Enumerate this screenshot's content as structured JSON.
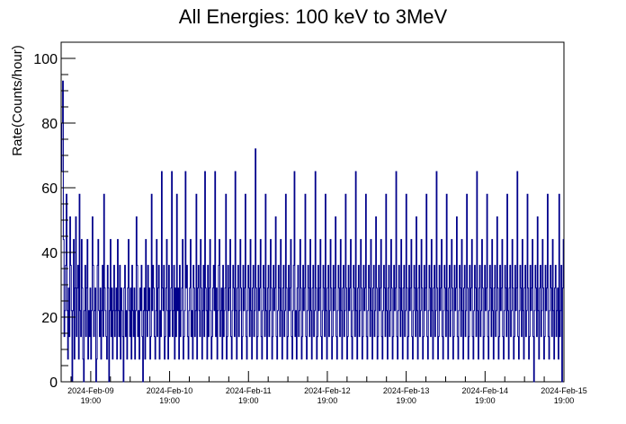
{
  "chart_data": {
    "type": "line",
    "title": "All Energies:  100 keV to 3MeV",
    "xlabel": "",
    "ylabel": "Rate(Counts/hour)",
    "ylim": [
      0,
      105
    ],
    "yticks": [
      0,
      20,
      40,
      60,
      80,
      100
    ],
    "xlim": [
      "2024-Feb-09 10:00",
      "2024-Feb-15 19:00"
    ],
    "xticks": [
      {
        "date": "2024-Feb-09",
        "time": "19:00"
      },
      {
        "date": "2024-Feb-10",
        "time": "19:00"
      },
      {
        "date": "2024-Feb-11",
        "time": "19:00"
      },
      {
        "date": "2024-Feb-12",
        "time": "19:00"
      },
      {
        "date": "2024-Feb-13",
        "time": "19:00"
      },
      {
        "date": "2024-Feb-14",
        "time": "19:00"
      },
      {
        "date": "2024-Feb-15",
        "time": "19:00"
      }
    ],
    "grid": false,
    "line_color": "#00008b",
    "series": [
      {
        "values": [
          65,
          80,
          93,
          44,
          14,
          22,
          36,
          58,
          22,
          7,
          29,
          14,
          51,
          36,
          22,
          0,
          22,
          44,
          7,
          29,
          51,
          14,
          29,
          36,
          7,
          58,
          22,
          14,
          44,
          29,
          7,
          0,
          22,
          36,
          14,
          29,
          44,
          7,
          22,
          14,
          29,
          7,
          22,
          51,
          36,
          14,
          22,
          29,
          0,
          7,
          36,
          44,
          22,
          14,
          29,
          7,
          22,
          36,
          14,
          58,
          29,
          22,
          14,
          7,
          36,
          29,
          0,
          22,
          44,
          14,
          29,
          7,
          22,
          36,
          14,
          22,
          29,
          7,
          44,
          22,
          14,
          36,
          7,
          29,
          22,
          14,
          0,
          29,
          36,
          14,
          22,
          7,
          29,
          44,
          22,
          14,
          29,
          7,
          36,
          22,
          14,
          29,
          7,
          22,
          51,
          36,
          14,
          22,
          7,
          29,
          22,
          36,
          14,
          0,
          22,
          29,
          7,
          44,
          22,
          14,
          36,
          22,
          29,
          7,
          14,
          58,
          22,
          36,
          29,
          14,
          7,
          22,
          44,
          14,
          29,
          36,
          7,
          22,
          14,
          65,
          29,
          22,
          36,
          7,
          14,
          29,
          44,
          22,
          7,
          36,
          14,
          22,
          29,
          65,
          14,
          22,
          36,
          7,
          29,
          14,
          58,
          22,
          29,
          7,
          36,
          14,
          22,
          29,
          44,
          7,
          14,
          22,
          65,
          29,
          36,
          14,
          7,
          22,
          29,
          44,
          14,
          22,
          7,
          36,
          29,
          14,
          22,
          58,
          7,
          29,
          36,
          22,
          14,
          44,
          29,
          7,
          22,
          36,
          14,
          65,
          29,
          22,
          7,
          36,
          14,
          29,
          44,
          22,
          7,
          14,
          29,
          36,
          22,
          65,
          14,
          29,
          7,
          22,
          36,
          44,
          14,
          22,
          29,
          7,
          36,
          14,
          22,
          29,
          58,
          7,
          14,
          36,
          22,
          29,
          44,
          14,
          7,
          22,
          36,
          29,
          14,
          65,
          22,
          7,
          29,
          36,
          14,
          22,
          44,
          29,
          7,
          14,
          36,
          22,
          29,
          58,
          14,
          7,
          22,
          36,
          29,
          14,
          44,
          22,
          7,
          29,
          36,
          14,
          22,
          72,
          29,
          7,
          14,
          36,
          22,
          29,
          44,
          14,
          7,
          22,
          36,
          29,
          14,
          58,
          22,
          7,
          29,
          36,
          14,
          22,
          44,
          29,
          7,
          14,
          36,
          22,
          29,
          51,
          14,
          7,
          22,
          36,
          29,
          14,
          44,
          22,
          7,
          29,
          36,
          14,
          22,
          58,
          29,
          7,
          14,
          36,
          22,
          29,
          44,
          14,
          7,
          22,
          36,
          65,
          14,
          22,
          7,
          29,
          36,
          14,
          22,
          44,
          29,
          7,
          14,
          36,
          22,
          29,
          58,
          14,
          7,
          22,
          36,
          29,
          14,
          44,
          22,
          7,
          29,
          36,
          14,
          22,
          65,
          29,
          7,
          14,
          36,
          22,
          29,
          44,
          14,
          7,
          22,
          36,
          29,
          14,
          58,
          22,
          7,
          29,
          36,
          14,
          22,
          44,
          29,
          7,
          14,
          36,
          22,
          29,
          51,
          14,
          7,
          22,
          36,
          29,
          14,
          44,
          22,
          7,
          29,
          36,
          14,
          22,
          58,
          29,
          7,
          14,
          36,
          22,
          29,
          44,
          14,
          7,
          22,
          36,
          29,
          14,
          65,
          22,
          7,
          29,
          36,
          14,
          22,
          44,
          29,
          7,
          14,
          36,
          22,
          29,
          58,
          14,
          7,
          22,
          36,
          29,
          14,
          44,
          22,
          7,
          29,
          36,
          14,
          22,
          51,
          29,
          7,
          14,
          36,
          22,
          29,
          44,
          14,
          7,
          22,
          36,
          29,
          14,
          58,
          22,
          7,
          29,
          36,
          14,
          22,
          44,
          29,
          7,
          14,
          36,
          22,
          29,
          65,
          14,
          7,
          22,
          36,
          29,
          14,
          44,
          22,
          7,
          29,
          36,
          14,
          22,
          58,
          29,
          7,
          14,
          36,
          22,
          29,
          44,
          14,
          7,
          22,
          36,
          29,
          14,
          51,
          22,
          7,
          29,
          36,
          14,
          22,
          44,
          29,
          7,
          14,
          36,
          22,
          29,
          58,
          14,
          7,
          22,
          36,
          29,
          14,
          44,
          22,
          7,
          29,
          36,
          14,
          22,
          65,
          29,
          7,
          14,
          36,
          22,
          29,
          44,
          14,
          7,
          22,
          36,
          29,
          14,
          58,
          22,
          7,
          29,
          36,
          14,
          22,
          44,
          29,
          7,
          14,
          36,
          22,
          29,
          51,
          14,
          7,
          22,
          36,
          29,
          14,
          44,
          22,
          7,
          29,
          36,
          14,
          22,
          58,
          29,
          7,
          14,
          36,
          22,
          29,
          44,
          14,
          7,
          22,
          36,
          29,
          14,
          65,
          22,
          7,
          29,
          36,
          14,
          22,
          44,
          29,
          7,
          14,
          36,
          22,
          29,
          58,
          14,
          7,
          22,
          36,
          29,
          14,
          44,
          22,
          7,
          29,
          36,
          14,
          22,
          51,
          29,
          7,
          14,
          36,
          22,
          29,
          44,
          14,
          7,
          22,
          36,
          29,
          14,
          58,
          22,
          7,
          29,
          36,
          14,
          22,
          44,
          29,
          7,
          14,
          36,
          22,
          29,
          65,
          14,
          7,
          22,
          36,
          29,
          14,
          44,
          22,
          7,
          29,
          36,
          14,
          22,
          58,
          29,
          7,
          14,
          36,
          22,
          29,
          44,
          14,
          0,
          22,
          36,
          29,
          14,
          51,
          22,
          7,
          29,
          36,
          14,
          22,
          44,
          29,
          7,
          14,
          36,
          22,
          29,
          58,
          14,
          7,
          22,
          36,
          29,
          14,
          44,
          22,
          7,
          29,
          36,
          14,
          22,
          29,
          7,
          58,
          14,
          22,
          36,
          0,
          29,
          44
        ]
      }
    ]
  }
}
